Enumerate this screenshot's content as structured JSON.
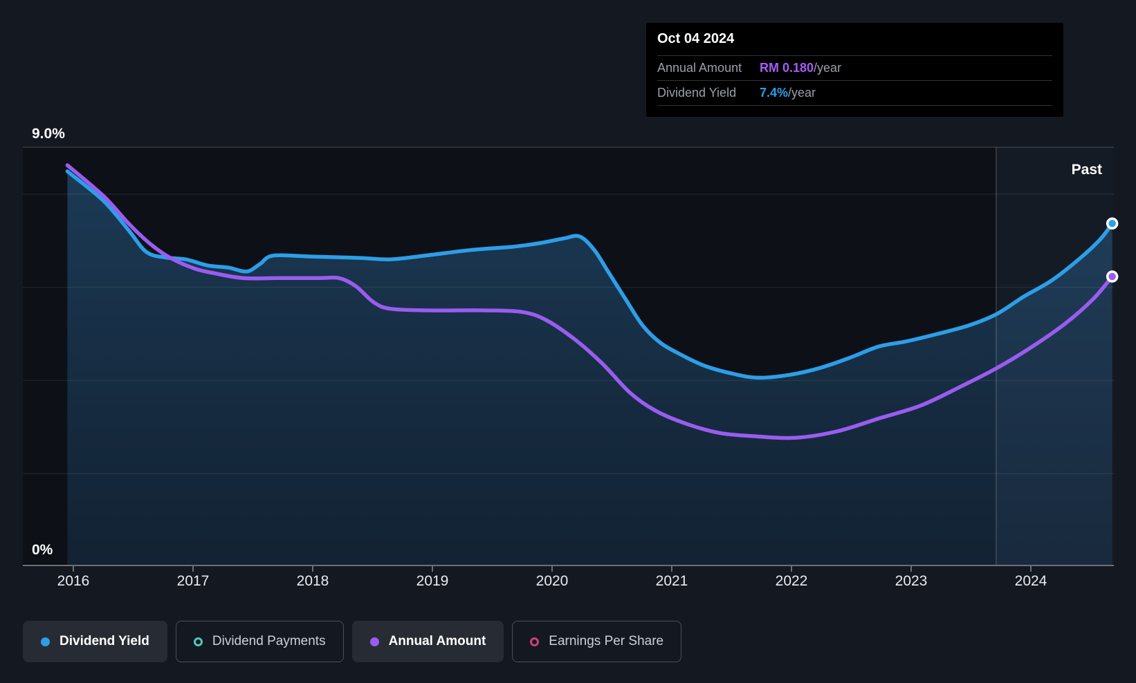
{
  "tooltip": {
    "date": "Oct 04 2024",
    "rows": [
      {
        "label": "Annual Amount",
        "value": "RM 0.180",
        "suffix": "/year",
        "color": "#A55CF6"
      },
      {
        "label": "Dividend Yield",
        "value": "7.4%",
        "suffix": "/year",
        "color": "#2D9EE8"
      }
    ]
  },
  "legend": {
    "items": [
      {
        "label": "Dividend Yield",
        "color": "#2D9EE8",
        "active": true
      },
      {
        "label": "Dividend Payments",
        "color": "#4FC8B8",
        "active": false
      },
      {
        "label": "Annual Amount",
        "color": "#9A5CF0",
        "active": true
      },
      {
        "label": "Earnings Per Share",
        "color": "#CC4178",
        "active": false
      }
    ]
  },
  "colors": {
    "page_bg": "#141821",
    "plot_bg": "#0D1117",
    "blue_line": "#2D9EE8",
    "purple_line": "#9A5CF0",
    "axis_line": "#6A7278",
    "tick_label": "#E9ECEF"
  },
  "chart_data": {
    "type": "line",
    "past_label": "Past",
    "past_from_year": 2023.71,
    "y_top_label": "9.0%",
    "y_bottom_label": "0%",
    "x_axis": {
      "ticks": [
        2016,
        2017,
        2018,
        2019,
        2020,
        2021,
        2022,
        2023,
        2024
      ],
      "labels": [
        "2016",
        "2017",
        "2018",
        "2019",
        "2020",
        "2021",
        "2022",
        "2023",
        "2024"
      ],
      "range": [
        2015.93,
        2024.72
      ]
    },
    "y_axis_percent": {
      "min": 0,
      "max": 9,
      "gridlines_percent": [
        8,
        6,
        4,
        2
      ],
      "grid": true,
      "legend_position": "bottom"
    },
    "series": [
      {
        "name": "Dividend Yield",
        "unit": "%",
        "color": "#2D9EE8",
        "end_value": "7.4%/year",
        "points": [
          [
            2015.95,
            8.49
          ],
          [
            2016.25,
            7.86
          ],
          [
            2016.46,
            7.23
          ],
          [
            2016.61,
            6.76
          ],
          [
            2016.77,
            6.64
          ],
          [
            2016.94,
            6.6
          ],
          [
            2017.12,
            6.47
          ],
          [
            2017.3,
            6.42
          ],
          [
            2017.45,
            6.34
          ],
          [
            2017.56,
            6.5
          ],
          [
            2017.67,
            6.68
          ],
          [
            2017.99,
            6.66
          ],
          [
            2018.39,
            6.63
          ],
          [
            2018.65,
            6.6
          ],
          [
            2018.97,
            6.69
          ],
          [
            2019.32,
            6.8
          ],
          [
            2019.67,
            6.87
          ],
          [
            2019.9,
            6.95
          ],
          [
            2020.1,
            7.05
          ],
          [
            2020.23,
            7.09
          ],
          [
            2020.35,
            6.81
          ],
          [
            2020.47,
            6.33
          ],
          [
            2020.62,
            5.72
          ],
          [
            2020.76,
            5.17
          ],
          [
            2020.91,
            4.8
          ],
          [
            2021.08,
            4.55
          ],
          [
            2021.28,
            4.31
          ],
          [
            2021.52,
            4.14
          ],
          [
            2021.72,
            4.06
          ],
          [
            2021.98,
            4.12
          ],
          [
            2022.24,
            4.27
          ],
          [
            2022.5,
            4.5
          ],
          [
            2022.73,
            4.73
          ],
          [
            2022.96,
            4.84
          ],
          [
            2023.22,
            5.0
          ],
          [
            2023.48,
            5.18
          ],
          [
            2023.71,
            5.42
          ],
          [
            2023.94,
            5.8
          ],
          [
            2024.17,
            6.14
          ],
          [
            2024.4,
            6.6
          ],
          [
            2024.58,
            7.03
          ],
          [
            2024.68,
            7.37
          ]
        ]
      },
      {
        "name": "Annual Amount",
        "unit": "RM",
        "color": "#9A5CF0",
        "end_value": "RM 0.180/year",
        "points": [
          [
            2015.95,
            0.249
          ],
          [
            2016.25,
            0.23
          ],
          [
            2016.46,
            0.213
          ],
          [
            2016.63,
            0.201
          ],
          [
            2016.8,
            0.192
          ],
          [
            2017.01,
            0.185
          ],
          [
            2017.18,
            0.182
          ],
          [
            2017.42,
            0.179
          ],
          [
            2017.7,
            0.179
          ],
          [
            2018.05,
            0.179
          ],
          [
            2018.22,
            0.179
          ],
          [
            2018.36,
            0.174
          ],
          [
            2018.51,
            0.164
          ],
          [
            2018.65,
            0.16
          ],
          [
            2018.97,
            0.159
          ],
          [
            2019.43,
            0.159
          ],
          [
            2019.75,
            0.158
          ],
          [
            2019.95,
            0.153
          ],
          [
            2020.19,
            0.141
          ],
          [
            2020.42,
            0.126
          ],
          [
            2020.65,
            0.108
          ],
          [
            2020.86,
            0.097
          ],
          [
            2021.11,
            0.089
          ],
          [
            2021.4,
            0.083
          ],
          [
            2021.69,
            0.081
          ],
          [
            2022.03,
            0.08
          ],
          [
            2022.38,
            0.084
          ],
          [
            2022.73,
            0.092
          ],
          [
            2023.08,
            0.1
          ],
          [
            2023.42,
            0.112
          ],
          [
            2023.71,
            0.123
          ],
          [
            2024.0,
            0.136
          ],
          [
            2024.29,
            0.151
          ],
          [
            2024.52,
            0.166
          ],
          [
            2024.68,
            0.18
          ]
        ]
      }
    ]
  }
}
